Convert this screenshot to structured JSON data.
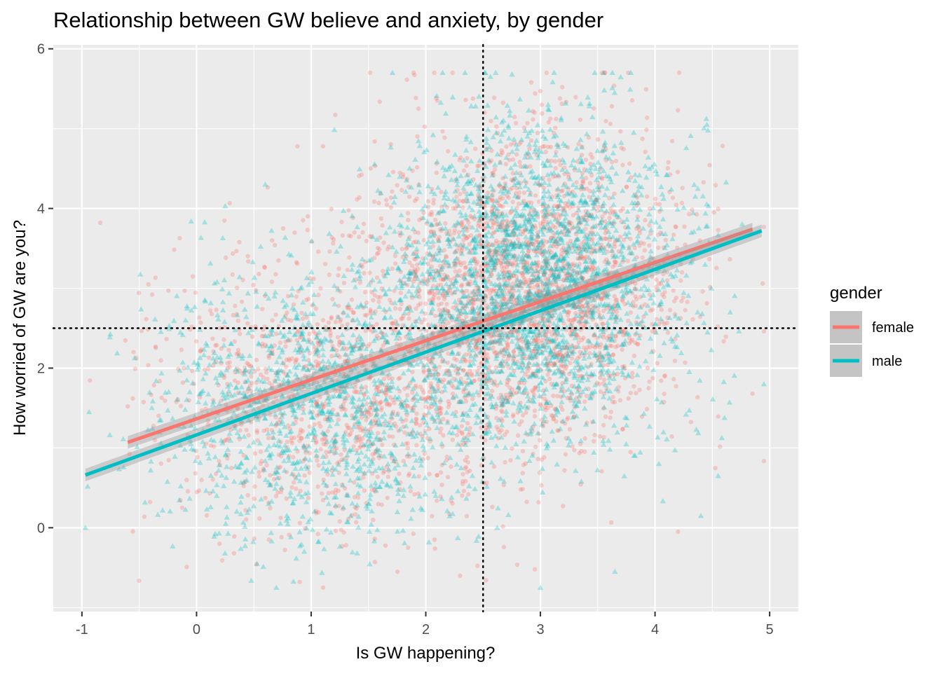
{
  "chart_data": {
    "type": "scatter",
    "title": "Relationship between GW believe and anxiety, by gender",
    "xlabel": "Is GW happening?",
    "ylabel": "How worried of GW are you?",
    "xlim": [
      -1.25,
      5.25
    ],
    "ylim": [
      -1.05,
      6.05
    ],
    "x_ticks": [
      -1,
      0,
      1,
      2,
      3,
      4,
      5
    ],
    "y_ticks": [
      0,
      2,
      4,
      6
    ],
    "grid": true,
    "reference_lines": {
      "vertical_x": 2.5,
      "horizontal_y": 2.5,
      "style": "dotted"
    },
    "legend": {
      "title": "gender",
      "position": "right",
      "entries": [
        "female",
        "male"
      ]
    },
    "series": [
      {
        "name": "female",
        "color": "#F8766D",
        "marker": "circle",
        "trend": {
          "x": [
            -0.6,
            4.85
          ],
          "y": [
            1.07,
            3.74
          ]
        },
        "clusters": [
          {
            "cx": 2.9,
            "cy": 3.0,
            "sx": 0.65,
            "sy": 0.95,
            "n": 2300
          },
          {
            "cx": 1.2,
            "cy": 1.7,
            "sx": 0.75,
            "sy": 0.85,
            "n": 1100
          }
        ],
        "outliers": [
          {
            "x": -0.55,
            "y": 2.2
          },
          {
            "x": -0.6,
            "y": 1.52
          },
          {
            "x": 0.88,
            "y": 4.78
          },
          {
            "x": 2.1,
            "y": 5.35
          },
          {
            "x": 3.0,
            "y": 5.47
          },
          {
            "x": 4.2,
            "y": 5.23
          },
          {
            "x": 0.9,
            "y": -0.68
          },
          {
            "x": 2.3,
            "y": -0.6
          },
          {
            "x": 4.2,
            "y": -0.05
          },
          {
            "x": 4.85,
            "y": 1.68
          },
          {
            "x": 0.2,
            "y": -0.2
          }
        ]
      },
      {
        "name": "male",
        "color": "#00BFC4",
        "marker": "triangle",
        "trend": {
          "x": [
            -0.97,
            4.93
          ],
          "y": [
            0.66,
            3.72
          ]
        },
        "clusters": [
          {
            "cx": 2.95,
            "cy": 3.1,
            "sx": 0.6,
            "sy": 0.95,
            "n": 2300
          },
          {
            "cx": 1.1,
            "cy": 1.5,
            "sx": 0.7,
            "sy": 0.85,
            "n": 1200
          }
        ],
        "outliers": [
          {
            "x": -0.97,
            "y": 0.0
          },
          {
            "x": 0.25,
            "y": 4.03
          },
          {
            "x": 3.55,
            "y": 5.7
          },
          {
            "x": 4.95,
            "y": 1.8
          },
          {
            "x": 4.55,
            "y": 0.65
          },
          {
            "x": 3.0,
            "y": -0.75
          },
          {
            "x": 3.65,
            "y": -0.55
          },
          {
            "x": 4.4,
            "y": 0.15
          },
          {
            "x": -0.4,
            "y": 0.72
          },
          {
            "x": 4.65,
            "y": 1.57
          },
          {
            "x": 0.6,
            "y": 4.3
          }
        ]
      }
    ]
  }
}
